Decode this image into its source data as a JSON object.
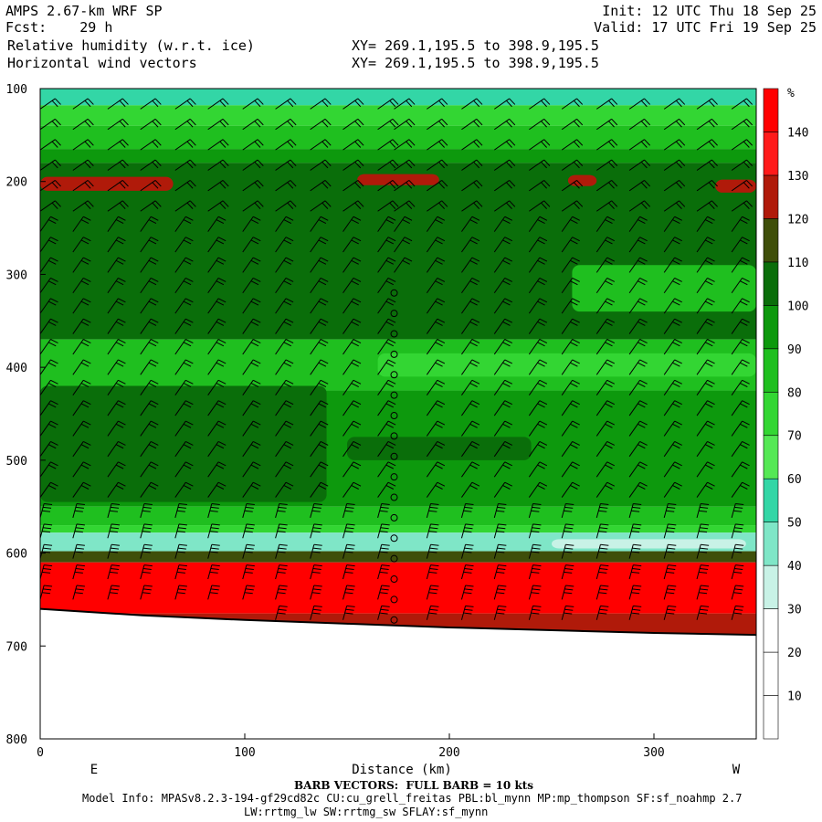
{
  "header": {
    "title": "AMPS 2.67-km WRF SP",
    "fcst": "Fcst:    29 h",
    "field1": "Relative humidity (w.r.t. ice)",
    "field2": "Horizontal wind vectors",
    "init": "Init: 12 UTC Thu 18 Sep 25",
    "valid": "Valid: 17 UTC Fri 19 Sep 25",
    "xy1": "XY= 269.1,195.5 to 398.9,195.5",
    "xy2": "XY= 269.1,195.5 to 398.9,195.5"
  },
  "footer": {
    "barb_note": "BARB VECTORS:  FULL BARB = 10 kts",
    "model_info": "Model Info: MPASv8.2.3-194-gf29cd82c CU:cu_grell_freitas PBL:bl_mynn MP:mp_thompson SF:sf_noahmp 2.7",
    "model_info2": "LW:rrtmg_lw SW:rrtmg_sw SFLAY:sf_mynn"
  },
  "chart_data": {
    "type": "heatmap",
    "xlabel": "Distance (km)",
    "ylabel": "",
    "x_range": [
      0,
      350
    ],
    "y_range": [
      100,
      800
    ],
    "x_ticks": [
      0,
      100,
      200,
      300
    ],
    "y_ticks": [
      100,
      200,
      300,
      400,
      500,
      600,
      700,
      800
    ],
    "direction_labels": {
      "left": "E",
      "right": "W"
    },
    "colorbar": {
      "unit": "%",
      "levels": [
        10,
        20,
        30,
        40,
        50,
        60,
        70,
        80,
        90,
        100,
        110,
        120,
        130,
        140
      ],
      "colors": [
        "#ffffff",
        "#ffffff",
        "#ffffff",
        "#c8f2e6",
        "#7fe6c7",
        "#33d6a6",
        "#55e855",
        "#33d633",
        "#1fbf1f",
        "#0d990d",
        "#0a6e0a",
        "#3f4f0a",
        "#b01a0a",
        "#ff1a1a",
        "#ff0000"
      ]
    },
    "bands": [
      {
        "p_top": 100,
        "p_bottom": 118,
        "rh": 50
      },
      {
        "p_top": 118,
        "p_bottom": 140,
        "rh": 75
      },
      {
        "p_top": 140,
        "p_bottom": 165,
        "rh": 85
      },
      {
        "p_top": 165,
        "p_bottom": 180,
        "rh": 95
      },
      {
        "p_top": 180,
        "p_bottom": 370,
        "rh": 105
      },
      {
        "p_top": 370,
        "p_bottom": 425,
        "rh": 85
      },
      {
        "p_top": 425,
        "p_bottom": 550,
        "rh": 95
      },
      {
        "p_top": 550,
        "p_bottom": 570,
        "rh": 85
      },
      {
        "p_top": 570,
        "p_bottom": 578,
        "rh": 75
      },
      {
        "p_top": 578,
        "p_bottom": 598,
        "rh": 45
      },
      {
        "p_top": 598,
        "p_bottom": 610,
        "rh": 115
      },
      {
        "p_top": 610,
        "p_bottom": 665,
        "rh": 145
      },
      {
        "p_top": 665,
        "p_bottom": 690,
        "rh": 125
      }
    ],
    "patches": [
      {
        "x0": 0,
        "x1": 65,
        "p0": 195,
        "p1": 210,
        "rh": 125
      },
      {
        "x0": 155,
        "x1": 195,
        "p0": 192,
        "p1": 204,
        "rh": 125
      },
      {
        "x0": 258,
        "x1": 272,
        "p0": 193,
        "p1": 205,
        "rh": 125
      },
      {
        "x0": 330,
        "x1": 350,
        "p0": 198,
        "p1": 212,
        "rh": 125
      },
      {
        "x0": 260,
        "x1": 350,
        "p0": 290,
        "p1": 340,
        "rh": 85
      },
      {
        "x0": 0,
        "x1": 140,
        "p0": 420,
        "p1": 545,
        "rh": 105
      },
      {
        "x0": 150,
        "x1": 240,
        "p0": 475,
        "p1": 500,
        "rh": 105
      },
      {
        "x0": 165,
        "x1": 350,
        "p0": 385,
        "p1": 410,
        "rh": 75
      },
      {
        "x0": 250,
        "x1": 345,
        "p0": 585,
        "p1": 595,
        "rh": 35
      }
    ],
    "terrain": [
      [
        0,
        660
      ],
      [
        50,
        667
      ],
      [
        100,
        672
      ],
      [
        150,
        676
      ],
      [
        200,
        680
      ],
      [
        250,
        683
      ],
      [
        300,
        686
      ],
      [
        350,
        688
      ]
    ],
    "barb_columns_km": [
      0,
      16,
      33,
      49,
      66,
      82,
      99,
      115,
      132,
      148,
      165,
      173,
      189,
      206,
      222,
      239,
      255,
      272,
      288,
      305,
      321,
      338
    ]
  }
}
